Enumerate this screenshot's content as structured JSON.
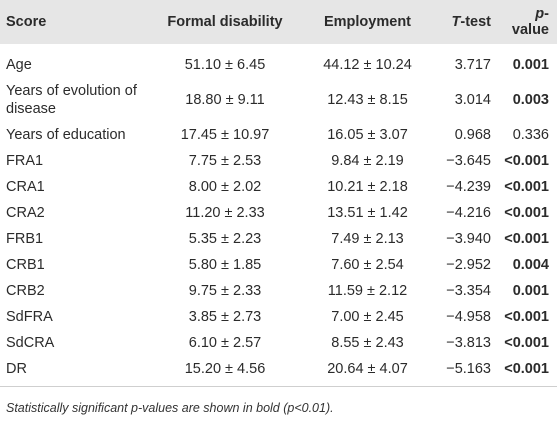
{
  "table": {
    "header": [
      [
        "Score"
      ],
      [
        "Formal disability"
      ],
      [
        "Employment"
      ],
      [
        "T",
        "-test"
      ],
      [
        "p",
        "-value"
      ]
    ],
    "rows": [
      {
        "cells": [
          "Age",
          "51.10 ± 6.45",
          "44.12 ± 10.24",
          "3.717",
          "0.001"
        ],
        "bold": true
      },
      {
        "cells": [
          "Years of evolution of disease",
          "18.80 ± 9.11",
          "12.43 ± 8.15",
          "3.014",
          "0.003"
        ],
        "bold": true
      },
      {
        "cells": [
          "Years of education",
          "17.45 ± 10.97",
          "16.05 ± 3.07",
          "0.968",
          "0.336"
        ],
        "bold": false
      },
      {
        "cells": [
          "FRA1",
          "7.75 ± 2.53",
          "9.84 ± 2.19",
          "−3.645",
          "<0.001"
        ],
        "bold": true
      },
      {
        "cells": [
          "CRA1",
          "8.00 ± 2.02",
          "10.21 ± 2.18",
          "−4.239",
          "<0.001"
        ],
        "bold": true
      },
      {
        "cells": [
          "CRA2",
          "11.20 ± 2.33",
          "13.51 ± 1.42",
          "−4.216",
          "<0.001"
        ],
        "bold": true
      },
      {
        "cells": [
          "FRB1",
          "5.35 ± 2.23",
          "7.49 ± 2.13",
          "−3.940",
          "<0.001"
        ],
        "bold": true
      },
      {
        "cells": [
          "CRB1",
          "5.80 ± 1.85",
          "7.60 ± 2.54",
          "−2.952",
          "0.004"
        ],
        "bold": true
      },
      {
        "cells": [
          "CRB2",
          "9.75 ± 2.33",
          "11.59 ± 2.12",
          "−3.354",
          "0.001"
        ],
        "bold": true
      },
      {
        "cells": [
          "SdFRA",
          "3.85 ± 2.73",
          "7.00 ± 2.45",
          "−4.958",
          "<0.001"
        ],
        "bold": true
      },
      {
        "cells": [
          "SdCRA",
          "6.10 ± 2.57",
          "8.55 ± 2.43",
          "−3.813",
          "<0.001"
        ],
        "bold": true
      },
      {
        "cells": [
          "DR",
          "15.20 ± 4.56",
          "20.64 ± 4.07",
          "−5.163",
          "<0.001"
        ],
        "bold": true
      }
    ],
    "footnote": "Statistically significant p-values are shown in bold (p<0.01)."
  }
}
